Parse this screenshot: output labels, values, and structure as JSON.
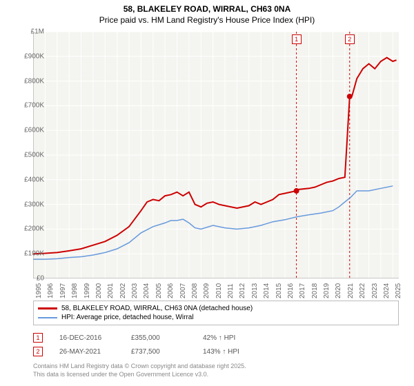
{
  "title": {
    "line1": "58, BLAKELEY ROAD, WIRRAL, CH63 0NA",
    "line2": "Price paid vs. HM Land Registry's House Price Index (HPI)"
  },
  "chart": {
    "type": "line",
    "background_color": "#f4f4f0",
    "grid_color": "#ffffff",
    "axis_color": "#999999",
    "ylim": [
      0,
      1000000
    ],
    "yticks": [
      0,
      100000,
      200000,
      300000,
      400000,
      500000,
      600000,
      700000,
      800000,
      900000,
      1000000
    ],
    "ytick_labels": [
      "£0",
      "£100K",
      "£200K",
      "£300K",
      "£400K",
      "£500K",
      "£600K",
      "£700K",
      "£800K",
      "£900K",
      "£1M"
    ],
    "xlim": [
      1995,
      2025.5
    ],
    "xticks": [
      1995,
      1996,
      1997,
      1998,
      1999,
      2000,
      2001,
      2002,
      2003,
      2004,
      2005,
      2006,
      2007,
      2008,
      2009,
      2010,
      2011,
      2012,
      2013,
      2014,
      2015,
      2016,
      2017,
      2018,
      2019,
      2020,
      2021,
      2022,
      2023,
      2024,
      2025
    ],
    "series": [
      {
        "name": "58, BLAKELEY ROAD, WIRRAL, CH63 0NA (detached house)",
        "color": "#cc0000",
        "line_width": 2,
        "data": [
          [
            1995,
            100000
          ],
          [
            1996,
            102000
          ],
          [
            1997,
            105000
          ],
          [
            1998,
            112000
          ],
          [
            1999,
            120000
          ],
          [
            2000,
            135000
          ],
          [
            2001,
            150000
          ],
          [
            2002,
            175000
          ],
          [
            2003,
            210000
          ],
          [
            2004,
            275000
          ],
          [
            2004.5,
            310000
          ],
          [
            2005,
            320000
          ],
          [
            2005.5,
            315000
          ],
          [
            2006,
            335000
          ],
          [
            2006.5,
            340000
          ],
          [
            2007,
            350000
          ],
          [
            2007.5,
            335000
          ],
          [
            2008,
            350000
          ],
          [
            2008.5,
            300000
          ],
          [
            2009,
            290000
          ],
          [
            2009.5,
            305000
          ],
          [
            2010,
            310000
          ],
          [
            2010.5,
            300000
          ],
          [
            2011,
            295000
          ],
          [
            2012,
            285000
          ],
          [
            2013,
            295000
          ],
          [
            2013.5,
            310000
          ],
          [
            2014,
            300000
          ],
          [
            2015,
            320000
          ],
          [
            2015.5,
            340000
          ],
          [
            2016,
            345000
          ],
          [
            2016.96,
            355000
          ],
          [
            2017,
            360000
          ],
          [
            2018,
            365000
          ],
          [
            2018.5,
            370000
          ],
          [
            2019,
            380000
          ],
          [
            2019.5,
            390000
          ],
          [
            2020,
            395000
          ],
          [
            2020.5,
            405000
          ],
          [
            2021,
            410000
          ],
          [
            2021.4,
            737500
          ],
          [
            2021.6,
            740000
          ],
          [
            2022,
            810000
          ],
          [
            2022.5,
            850000
          ],
          [
            2023,
            870000
          ],
          [
            2023.5,
            850000
          ],
          [
            2024,
            880000
          ],
          [
            2024.5,
            895000
          ],
          [
            2025,
            880000
          ],
          [
            2025.3,
            885000
          ]
        ]
      },
      {
        "name": "HPI: Average price, detached house, Wirral",
        "color": "#6699dd",
        "line_width": 1.5,
        "data": [
          [
            1995,
            78000
          ],
          [
            1996,
            78000
          ],
          [
            1997,
            80000
          ],
          [
            1998,
            85000
          ],
          [
            1999,
            88000
          ],
          [
            2000,
            95000
          ],
          [
            2001,
            105000
          ],
          [
            2002,
            120000
          ],
          [
            2003,
            145000
          ],
          [
            2004,
            185000
          ],
          [
            2005,
            210000
          ],
          [
            2006,
            225000
          ],
          [
            2006.5,
            235000
          ],
          [
            2007,
            235000
          ],
          [
            2007.5,
            240000
          ],
          [
            2008,
            225000
          ],
          [
            2008.5,
            205000
          ],
          [
            2009,
            200000
          ],
          [
            2010,
            215000
          ],
          [
            2011,
            205000
          ],
          [
            2012,
            200000
          ],
          [
            2013,
            205000
          ],
          [
            2014,
            215000
          ],
          [
            2015,
            230000
          ],
          [
            2016,
            238000
          ],
          [
            2017,
            250000
          ],
          [
            2018,
            258000
          ],
          [
            2019,
            265000
          ],
          [
            2020,
            275000
          ],
          [
            2020.5,
            290000
          ],
          [
            2021,
            310000
          ],
          [
            2021.5,
            330000
          ],
          [
            2022,
            355000
          ],
          [
            2023,
            355000
          ],
          [
            2024,
            365000
          ],
          [
            2025,
            375000
          ]
        ]
      }
    ],
    "sale_markers": [
      {
        "id": "1",
        "x": 2016.96,
        "y": 355000,
        "color": "#cc0000"
      },
      {
        "id": "2",
        "x": 2021.4,
        "y": 737500,
        "color": "#cc0000"
      }
    ],
    "label_fontsize": 10,
    "title_fontsize": 12
  },
  "legend": {
    "items": [
      {
        "label": "58, BLAKELEY ROAD, WIRRAL, CH63 0NA (detached house)",
        "color": "#cc0000"
      },
      {
        "label": "HPI: Average price, detached house, Wirral",
        "color": "#6699dd"
      }
    ]
  },
  "sales_table": {
    "rows": [
      {
        "marker": "1",
        "date": "16-DEC-2016",
        "price": "£355,000",
        "delta": "42% ↑ HPI"
      },
      {
        "marker": "2",
        "date": "26-MAY-2021",
        "price": "£737,500",
        "delta": "143% ↑ HPI"
      }
    ]
  },
  "footer": {
    "line1": "Contains HM Land Registry data © Crown copyright and database right 2025.",
    "line2": "This data is licensed under the Open Government Licence v3.0."
  }
}
